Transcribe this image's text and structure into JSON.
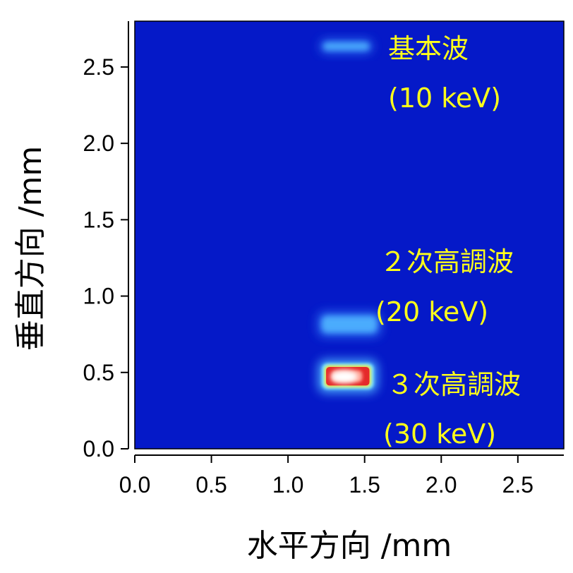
{
  "chart_data": {
    "type": "heatmap",
    "xlabel": "水平方向 /mm",
    "ylabel": "垂直方向 /mm",
    "xlim": [
      0.0,
      2.8
    ],
    "ylim": [
      0.0,
      2.8
    ],
    "x_ticks": [
      "0.0",
      "0.5",
      "1.0",
      "1.5",
      "2.0",
      "2.5"
    ],
    "y_ticks": [
      "0.0",
      "0.5",
      "1.0",
      "1.5",
      "2.0",
      "2.5"
    ],
    "x_tick_values": [
      0.0,
      0.5,
      1.0,
      1.5,
      2.0,
      2.5
    ],
    "y_tick_values": [
      0.0,
      0.5,
      1.0,
      1.5,
      2.0,
      2.5
    ],
    "grid": false,
    "colors": {
      "background": "#0519c8",
      "low": "#2a6df0",
      "mid": "#4fb4ff",
      "high": "#e52a2a",
      "peak": "#ffffff",
      "annotation": "#ffff1a"
    },
    "spots": [
      {
        "name": "fundamental",
        "x_range": [
          1.23,
          1.53
        ],
        "y_range": [
          2.61,
          2.66
        ],
        "intensity": 0.35
      },
      {
        "name": "second-harmonic",
        "x_range": [
          1.22,
          1.58
        ],
        "y_range": [
          0.76,
          0.87
        ],
        "intensity": 0.45
      },
      {
        "name": "third-harmonic",
        "x_range": [
          1.23,
          1.55
        ],
        "y_range": [
          0.4,
          0.55
        ],
        "intensity": 1.0
      }
    ],
    "annotations": [
      {
        "line1": "基本波",
        "line2": "(10 keV)"
      },
      {
        "line1": "２次高調波",
        "line2": "(20 keV)"
      },
      {
        "line1": "３次高調波",
        "line2": "(30 keV)"
      }
    ]
  }
}
